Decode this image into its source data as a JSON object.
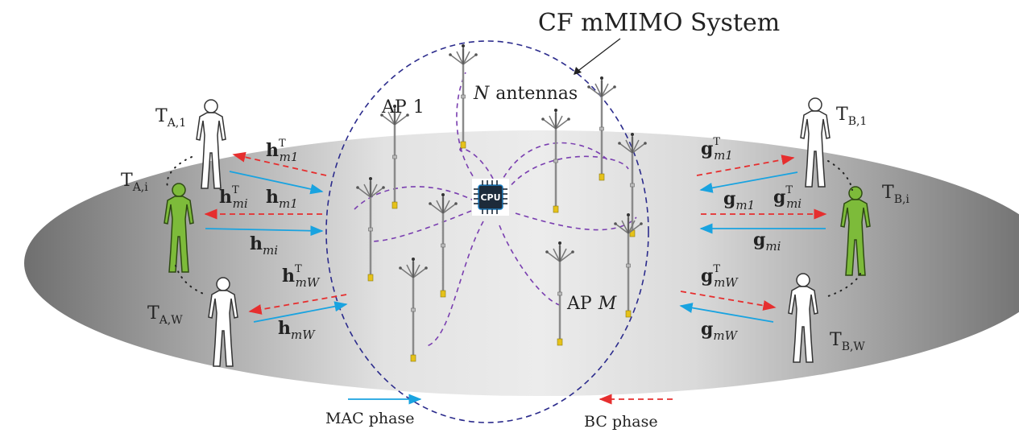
{
  "title": "CF mMIMO System",
  "ap_first": {
    "main": "AP",
    "sub": "1"
  },
  "ap_last": {
    "main": "AP",
    "sub": "M"
  },
  "antenna_label": {
    "sym": "N",
    "text": "antennas"
  },
  "cpu_label": "CPU",
  "terminals_a": [
    {
      "main": "T",
      "sub": "A,1"
    },
    {
      "main": "T",
      "sub": "A,i"
    },
    {
      "main": "T",
      "sub": "A,W"
    }
  ],
  "terminals_b": [
    {
      "main": "T",
      "sub": "B,1"
    },
    {
      "main": "T",
      "sub": "B,i"
    },
    {
      "main": "T",
      "sub": "B,W"
    }
  ],
  "channels_a": [
    {
      "main": "h",
      "sub": "m1",
      "sup": "T"
    },
    {
      "main": "h",
      "sub": "m1",
      "sup": ""
    },
    {
      "main": "h",
      "sub": "mi",
      "sup": "T"
    },
    {
      "main": "h",
      "sub": "mi",
      "sup": ""
    },
    {
      "main": "h",
      "sub": "mW",
      "sup": "T"
    },
    {
      "main": "h",
      "sub": "mW",
      "sup": ""
    }
  ],
  "channels_b": [
    {
      "main": "g",
      "sub": "m1",
      "sup": "T"
    },
    {
      "main": "g",
      "sub": "m1",
      "sup": ""
    },
    {
      "main": "g",
      "sub": "mi",
      "sup": "T"
    },
    {
      "main": "g",
      "sub": "mi",
      "sup": ""
    },
    {
      "main": "g",
      "sub": "mW",
      "sup": "T"
    },
    {
      "main": "g",
      "sub": "mW",
      "sup": ""
    }
  ],
  "legend": {
    "mac": "MAC phase",
    "bc": "BC phase"
  },
  "colors": {
    "mac_arrow": "#19a3e0",
    "bc_arrow": "#e62e2e",
    "system_border": "#2b2b8c",
    "link_curve": "#7a3fb0",
    "active_user": "#7dbb3a"
  }
}
